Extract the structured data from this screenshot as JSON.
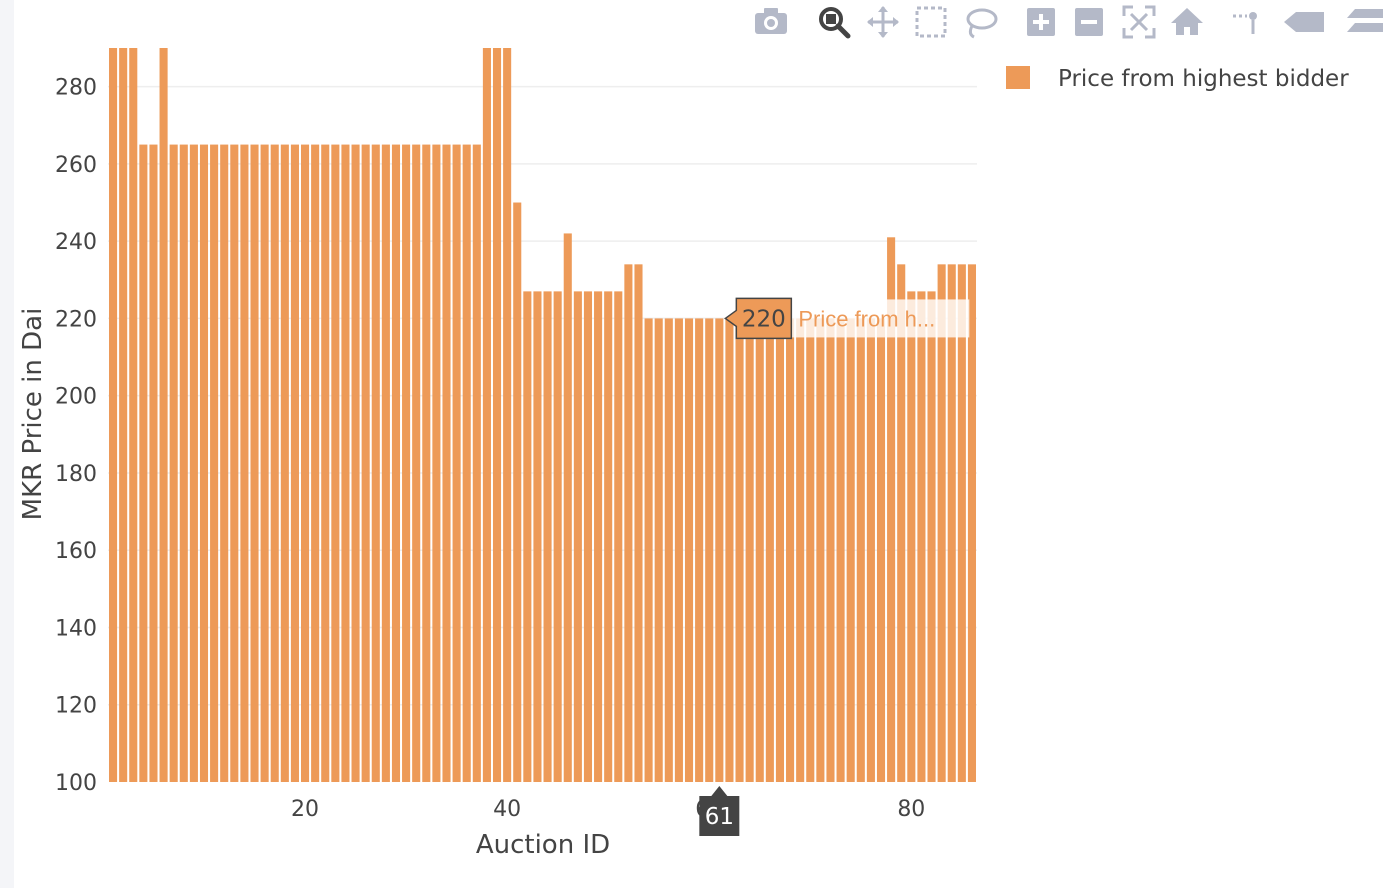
{
  "modebar": {
    "buttons": [
      {
        "name": "camera-icon",
        "title": "Download plot as a png"
      },
      {
        "name": "zoom-icon",
        "title": "Zoom"
      },
      {
        "name": "pan-icon",
        "title": "Pan"
      },
      {
        "name": "box-select-icon",
        "title": "Box Select"
      },
      {
        "name": "lasso-select-icon",
        "title": "Lasso Select"
      },
      {
        "name": "zoom-in-icon",
        "title": "Zoom in"
      },
      {
        "name": "zoom-out-icon",
        "title": "Zoom out"
      },
      {
        "name": "autoscale-icon",
        "title": "Autoscale"
      },
      {
        "name": "reset-axes-icon",
        "title": "Reset axes"
      },
      {
        "name": "spike-lines-icon",
        "title": "Toggle Spike Lines"
      },
      {
        "name": "hover-closest-icon",
        "title": "Show closest data on hover"
      },
      {
        "name": "hover-compare-icon",
        "title": "Compare data on hover"
      }
    ],
    "active": "zoom-icon",
    "icon_color": "#b4b9c8",
    "active_color": "#444444"
  },
  "chart_data": {
    "type": "bar",
    "xlabel": "Auction ID",
    "ylabel": "MKR Price in Dai",
    "xlim": [
      0.5,
      86.5
    ],
    "ylim": [
      100,
      290
    ],
    "x_ticks": [
      20,
      40,
      60,
      80
    ],
    "y_ticks": [
      100,
      120,
      140,
      160,
      180,
      200,
      220,
      240,
      260,
      280
    ],
    "grid": true,
    "legend_position": "top-right",
    "bar_color": "#ed9a58",
    "series": [
      {
        "name": "Price from highest bidder",
        "x": [
          1,
          2,
          3,
          4,
          5,
          6,
          7,
          8,
          9,
          10,
          11,
          12,
          13,
          14,
          15,
          16,
          17,
          18,
          19,
          20,
          21,
          22,
          23,
          24,
          25,
          26,
          27,
          28,
          29,
          30,
          31,
          32,
          33,
          34,
          35,
          36,
          37,
          38,
          39,
          40,
          41,
          42,
          43,
          44,
          45,
          46,
          47,
          48,
          49,
          50,
          51,
          52,
          53,
          54,
          55,
          56,
          57,
          58,
          59,
          60,
          61,
          62,
          63,
          64,
          65,
          66,
          67,
          68,
          69,
          70,
          71,
          72,
          73,
          74,
          75,
          76,
          77,
          78,
          79,
          80,
          81,
          82,
          83,
          84,
          85,
          86
        ],
        "values": [
          300,
          300,
          300,
          265,
          265,
          300,
          265,
          265,
          265,
          265,
          265,
          265,
          265,
          265,
          265,
          265,
          265,
          265,
          265,
          265,
          265,
          265,
          265,
          265,
          265,
          265,
          265,
          265,
          265,
          265,
          265,
          265,
          265,
          265,
          265,
          265,
          265,
          300,
          300,
          300,
          250,
          227,
          227,
          227,
          227,
          242,
          227,
          227,
          227,
          227,
          227,
          234,
          234,
          220,
          220,
          220,
          220,
          220,
          220,
          220,
          220,
          220,
          220,
          220,
          220,
          220,
          220,
          220,
          220,
          220,
          220,
          220,
          220,
          220,
          220,
          220,
          220,
          241,
          234,
          227,
          227,
          227,
          234,
          234,
          234,
          234
        ]
      }
    ],
    "hover": {
      "x": 61,
      "x_label": "61",
      "value_label": "220",
      "series_label": "Price from h..."
    }
  }
}
